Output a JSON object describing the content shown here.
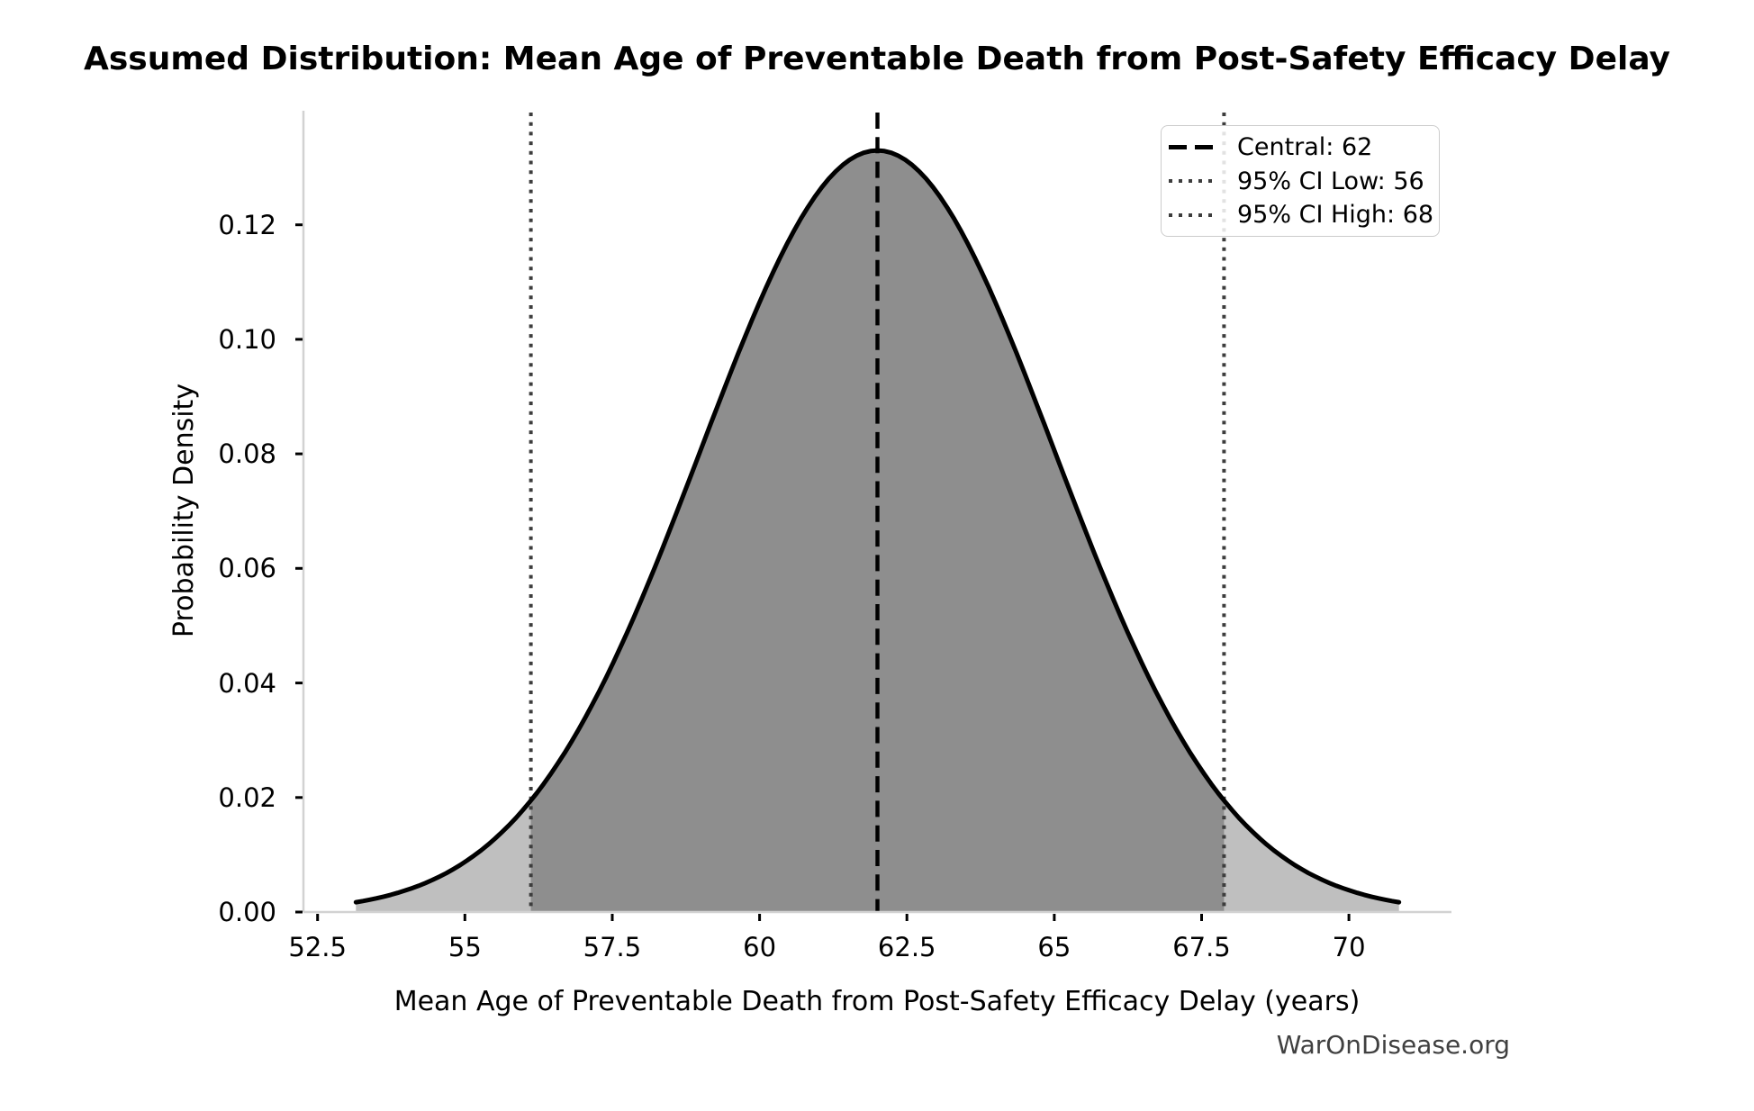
{
  "chart_data": {
    "type": "area",
    "title": "Assumed Distribution: Mean Age of Preventable Death from Post-Safety Efficacy Delay",
    "xlabel": "Mean Age of Preventable Death from Post-Safety Efficacy Delay (years)",
    "ylabel": "Probability Density",
    "watermark": "WarOnDisease.org",
    "distribution": {
      "kind": "normal",
      "mean": 62,
      "sigma": 3.0,
      "curve_x_start": 53.15,
      "curve_x_end": 70.85,
      "peak_density": 0.133
    },
    "central_value": 62,
    "ci95_low": 56,
    "ci95_high": 68,
    "ci_line_positions": {
      "low": 56.12,
      "high": 67.88
    },
    "shaded_region": {
      "from": 56.12,
      "to": 67.88
    },
    "xlim": [
      52.26,
      71.74
    ],
    "ylim": [
      0,
      0.1396
    ],
    "grid": false,
    "x_ticks": [
      {
        "value": 52.5,
        "label": "52.5"
      },
      {
        "value": 55,
        "label": "55"
      },
      {
        "value": 57.5,
        "label": "57.5"
      },
      {
        "value": 60,
        "label": "60"
      },
      {
        "value": 62.5,
        "label": "62.5"
      },
      {
        "value": 65,
        "label": "65"
      },
      {
        "value": 67.5,
        "label": "67.5"
      },
      {
        "value": 70,
        "label": "70"
      }
    ],
    "y_ticks": [
      {
        "value": 0.0,
        "label": "0.00"
      },
      {
        "value": 0.02,
        "label": "0.02"
      },
      {
        "value": 0.04,
        "label": "0.04"
      },
      {
        "value": 0.06,
        "label": "0.06"
      },
      {
        "value": 0.08,
        "label": "0.08"
      },
      {
        "value": 0.1,
        "label": "0.10"
      },
      {
        "value": 0.12,
        "label": "0.12"
      }
    ],
    "legend": {
      "position": "upper right",
      "items": [
        {
          "label": "Central: 62",
          "line_style": "dashed",
          "color": "#000000"
        },
        {
          "label": "95% CI Low: 56",
          "line_style": "dotted",
          "color": "#3d3d3d"
        },
        {
          "label": "95% CI High: 68",
          "line_style": "dotted",
          "color": "#3d3d3d"
        }
      ]
    },
    "colors": {
      "curve": "#000000",
      "fill_central": "#8e8e8e",
      "fill_tail": "#bfbfbf",
      "central_line": "#000000",
      "ci_line": "#3d3d3d",
      "spine": "#d2d2d2",
      "tick": "#000000",
      "text": "#000000",
      "watermark": "#404040",
      "legend_border": "#cccccc"
    }
  }
}
